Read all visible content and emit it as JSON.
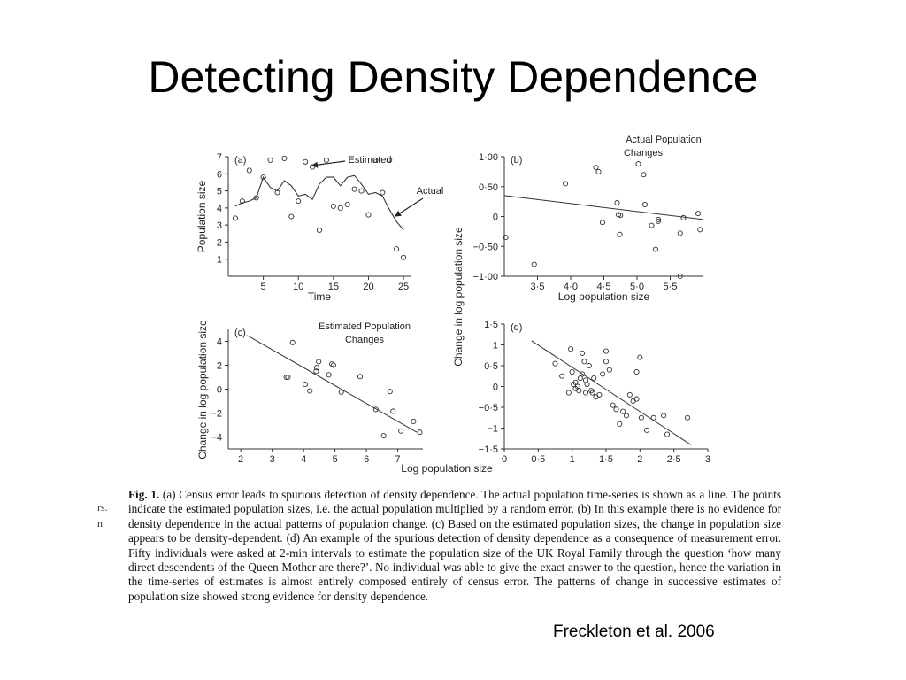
{
  "slide": {
    "title": "Detecting Density Dependence",
    "citation": "Freckleton et al. 2006"
  },
  "caption": {
    "label": "Fig. 1.",
    "text": "(a) Census error leads to spurious detection of density dependence. The actual population time-series is shown as a line. The points indicate the estimated population sizes, i.e. the actual population multiplied by a random error. (b) In this example there is no evidence for density dependence in the actual patterns of population change. (c) Based on the estimated population sizes, the change in population size appears to be density-dependent. (d) An example of the spurious detection of density dependence as a consequence of measurement error. Fifty individuals were asked at 2-min intervals to estimate the population size of the UK Royal Family through the question ‘how many direct descendents of the Queen Mother are there?’. No individual was able to give the exact answer to the question, hence the variation in the time-series of estimates is almost entirely composed entirely of census error. The patterns of change in successive estimates of population size showed strong evidence for density dependence.",
    "margin_fragment_1": "rs.",
    "margin_fragment_2": "n"
  },
  "shared_labels": {
    "bottom_xlabel": "Log population size",
    "left_ylabel": "Change in log population size"
  },
  "chart_data": [
    {
      "panel": "(a)",
      "type": "line",
      "xlabel": "Time",
      "ylabel": "Population size",
      "xlim": [
        0,
        26
      ],
      "ylim": [
        0,
        7
      ],
      "xticks": [
        5,
        10,
        15,
        20,
        25
      ],
      "yticks": [
        1,
        2,
        3,
        4,
        5,
        6,
        7
      ],
      "xtick_labels": [
        "5",
        "10",
        "15",
        "20",
        "25"
      ],
      "ytick_labels": [
        "1",
        "2",
        "3",
        "4",
        "5",
        "6",
        "7"
      ],
      "annotations": [
        "Estimated",
        "Actual"
      ],
      "series": [
        {
          "name": "Actual",
          "kind": "line",
          "x": [
            1,
            2,
            3,
            4,
            5,
            6,
            7,
            8,
            9,
            10,
            11,
            12,
            13,
            14,
            15,
            16,
            17,
            18,
            19,
            20,
            21,
            22,
            23,
            24,
            25
          ],
          "y": [
            4.1,
            4.3,
            4.4,
            4.6,
            5.8,
            5.2,
            5.0,
            5.6,
            5.3,
            4.7,
            4.8,
            4.5,
            5.4,
            5.8,
            5.8,
            5.3,
            5.8,
            5.9,
            5.4,
            4.8,
            4.9,
            4.7,
            3.9,
            3.2,
            2.7
          ]
        },
        {
          "name": "Estimated",
          "kind": "scatter",
          "x": [
            1,
            2,
            3,
            4,
            5,
            6,
            7,
            8,
            9,
            10,
            11,
            12,
            13,
            14,
            15,
            16,
            17,
            18,
            19,
            20,
            21,
            22,
            23,
            24,
            25
          ],
          "y": [
            3.4,
            4.4,
            6.2,
            4.6,
            5.8,
            6.8,
            4.9,
            6.9,
            3.5,
            4.4,
            6.7,
            6.4,
            2.7,
            6.8,
            4.1,
            4.0,
            4.2,
            5.1,
            5.0,
            3.6,
            6.8,
            4.9,
            6.8,
            1.6,
            1.1
          ]
        }
      ]
    },
    {
      "panel": "(b)",
      "type": "scatter",
      "xlabel": "Log population size",
      "ylabel": "",
      "xlim": [
        3,
        6
      ],
      "ylim": [
        -1.0,
        1.0
      ],
      "xticks": [
        3.5,
        4.0,
        4.5,
        5.0,
        5.5
      ],
      "yticks": [
        1.0,
        0.5,
        0,
        -0.5,
        -1.0
      ],
      "xtick_labels": [
        "3·5",
        "4·0",
        "4·5",
        "5·0",
        "5·5"
      ],
      "ytick_labels": [
        "1·00",
        "0·50",
        "0",
        "−0·50",
        "−1·00"
      ],
      "annotations": [
        "Actual Population",
        "Changes"
      ],
      "points": {
        "x": [
          3.02,
          3.45,
          3.92,
          4.38,
          4.42,
          4.48,
          4.7,
          4.72,
          4.74,
          4.75,
          5.02,
          5.1,
          5.12,
          5.22,
          5.28,
          5.32,
          5.32,
          5.65,
          5.65,
          5.7,
          5.92,
          5.95
        ],
        "y": [
          -0.35,
          -0.8,
          0.55,
          0.82,
          0.75,
          -0.1,
          0.23,
          0.03,
          -0.3,
          0.02,
          0.88,
          0.7,
          0.2,
          -0.15,
          -0.55,
          -0.05,
          -0.08,
          -0.28,
          -1.0,
          -0.02,
          0.05,
          -0.22
        ]
      },
      "fit": {
        "x": [
          3.0,
          6.0
        ],
        "y": [
          0.35,
          -0.05
        ]
      }
    },
    {
      "panel": "(c)",
      "type": "scatter",
      "xlabel": "",
      "ylabel": "",
      "xlim": [
        1.6,
        7.8
      ],
      "ylim": [
        -5,
        5
      ],
      "xticks": [
        2,
        3,
        4,
        5,
        6,
        7
      ],
      "yticks": [
        4,
        2,
        0,
        -2,
        -4
      ],
      "xtick_labels": [
        "2",
        "3",
        "4",
        "5",
        "6",
        "7"
      ],
      "ytick_labels": [
        "4",
        "2",
        "0",
        "−2",
        "−4"
      ],
      "annotations": [
        "Estimated Population",
        "Changes"
      ],
      "points": {
        "x": [
          3.45,
          3.5,
          3.65,
          4.05,
          4.2,
          4.4,
          4.42,
          4.48,
          4.8,
          4.9,
          4.95,
          5.2,
          5.8,
          6.3,
          6.55,
          6.75,
          6.85,
          7.1,
          7.5,
          7.7
        ],
        "y": [
          1.0,
          1.0,
          3.9,
          0.4,
          -0.15,
          1.5,
          1.8,
          2.3,
          1.2,
          2.1,
          2.0,
          -0.25,
          1.05,
          -1.7,
          -3.9,
          -0.2,
          -1.85,
          -3.5,
          -2.7,
          -3.6
        ]
      },
      "fit": {
        "x": [
          2.2,
          7.6
        ],
        "y": [
          4.5,
          -3.6
        ]
      }
    },
    {
      "panel": "(d)",
      "type": "scatter",
      "xlabel": "",
      "ylabel": "",
      "xlim": [
        0,
        3
      ],
      "ylim": [
        -1.5,
        1.5
      ],
      "xticks": [
        0,
        0.5,
        1,
        1.5,
        2,
        2.5,
        3
      ],
      "yticks": [
        1.5,
        1,
        0.5,
        0,
        -0.5,
        -1,
        -1.5
      ],
      "xtick_labels": [
        "0",
        "0·5",
        "1",
        "1·5",
        "2",
        "2·5",
        "3"
      ],
      "ytick_labels": [
        "1·5",
        "1",
        "0·5",
        "0",
        "−0·5",
        "−1",
        "−1·5"
      ],
      "annotations": [],
      "points": {
        "x": [
          0.75,
          0.85,
          0.95,
          0.98,
          1.0,
          1.02,
          1.05,
          1.05,
          1.08,
          1.1,
          1.12,
          1.15,
          1.15,
          1.18,
          1.2,
          1.2,
          1.22,
          1.25,
          1.28,
          1.3,
          1.32,
          1.35,
          1.4,
          1.45,
          1.5,
          1.5,
          1.55,
          1.6,
          1.65,
          1.7,
          1.75,
          1.8,
          1.85,
          1.9,
          1.95,
          1.95,
          2.0,
          2.02,
          2.1,
          2.2,
          2.35,
          2.4,
          2.7
        ],
        "y": [
          0.55,
          0.25,
          -0.15,
          0.9,
          0.35,
          0.05,
          0.1,
          -0.05,
          0.0,
          -0.1,
          0.2,
          0.8,
          0.3,
          0.6,
          0.15,
          -0.15,
          0.05,
          0.5,
          -0.1,
          -0.15,
          0.2,
          -0.25,
          -0.2,
          0.3,
          0.85,
          0.6,
          0.4,
          -0.45,
          -0.55,
          -0.9,
          -0.6,
          -0.7,
          -0.2,
          -0.35,
          0.35,
          -0.3,
          0.7,
          -0.75,
          -1.05,
          -0.75,
          -0.7,
          -1.15,
          -0.75
        ]
      },
      "fit": {
        "x": [
          0.4,
          2.75
        ],
        "y": [
          1.1,
          -1.4
        ]
      }
    }
  ]
}
